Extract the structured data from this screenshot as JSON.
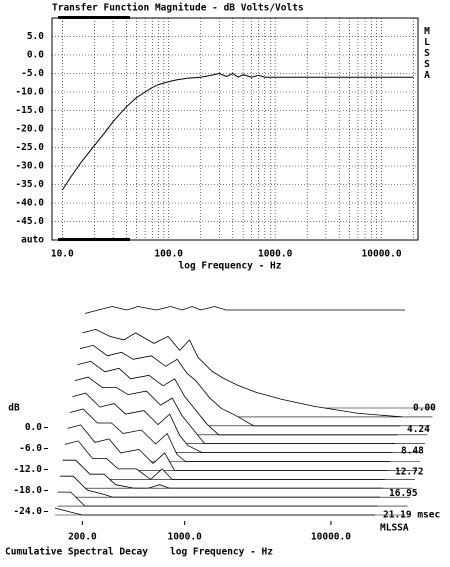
{
  "chart_data": [
    {
      "type": "line",
      "title": "Transfer Function Magnitude - dB Volts/Volts",
      "xlabel": "log Frequency - Hz",
      "side_label": "MLSSA",
      "log_x": true,
      "grid": true,
      "color": "#000000",
      "xlim": [
        8,
        22000
      ],
      "xticks": [
        {
          "value": 10,
          "label": "10.0"
        },
        {
          "value": 100,
          "label": "100.0"
        },
        {
          "value": 1000,
          "label": "1000.0"
        },
        {
          "value": 10000,
          "label": "10000.0"
        }
      ],
      "x_minor_ticks": [
        20,
        30,
        40,
        50,
        60,
        70,
        80,
        90,
        200,
        300,
        400,
        500,
        600,
        700,
        800,
        900,
        2000,
        3000,
        4000,
        5000,
        6000,
        7000,
        8000,
        9000,
        20000
      ],
      "ylim": [
        -50,
        10
      ],
      "yticks": [
        {
          "value": 5,
          "label": "5.0"
        },
        {
          "value": 0,
          "label": "0.0"
        },
        {
          "value": -5,
          "label": "-5.0"
        },
        {
          "value": -10,
          "label": "-10.0"
        },
        {
          "value": -15,
          "label": "-15.0"
        },
        {
          "value": -20,
          "label": "-20.0"
        },
        {
          "value": -25,
          "label": "-25.0"
        },
        {
          "value": -30,
          "label": "-30.0"
        },
        {
          "value": -35,
          "label": "-35.0"
        },
        {
          "value": -40,
          "label": "-40.0"
        },
        {
          "value": -45,
          "label": "-45.0"
        },
        {
          "value": -50,
          "label": "auto"
        }
      ],
      "x": [
        10,
        12,
        15,
        20,
        25,
        30,
        40,
        50,
        60,
        70,
        80,
        100,
        120,
        150,
        200,
        250,
        300,
        350,
        400,
        450,
        500,
        600,
        700,
        800,
        1000,
        2000,
        5000,
        10000,
        20000
      ],
      "values": [
        -36.5,
        -33,
        -29,
        -24.5,
        -21,
        -18,
        -14,
        -11.5,
        -10,
        -8.8,
        -8,
        -7.2,
        -6.7,
        -6.3,
        -6,
        -5.5,
        -5,
        -5.8,
        -5,
        -6,
        -5.3,
        -6,
        -5.5,
        -6,
        -6,
        -6,
        -6,
        -6,
        -6
      ]
    },
    {
      "type": "waterfall",
      "caption": "Cumulative Spectral Decay",
      "xlabel": "log Frequency - Hz",
      "ylabel": "dB",
      "brand": "MLSSA",
      "log_x": true,
      "xlim": [
        130,
        20000
      ],
      "xticks": [
        {
          "value": 200,
          "label": "200.0"
        },
        {
          "value": 1000,
          "label": "1000.0"
        },
        {
          "value": 10000,
          "label": "10000.0"
        }
      ],
      "ylim": [
        -25,
        6
      ],
      "yticks": [
        {
          "value": 0,
          "label": "0.0"
        },
        {
          "value": -6,
          "label": "-6.0"
        },
        {
          "value": -12,
          "label": "-12.0"
        },
        {
          "value": -18,
          "label": "-18.0"
        },
        {
          "value": -24,
          "label": "-24.0"
        }
      ],
      "zlim": [
        0,
        21.19
      ],
      "zticks": [
        {
          "value": 0,
          "label": "0.00"
        },
        {
          "value": 4.24,
          "label": "4.24"
        },
        {
          "value": 8.48,
          "label": "8.48"
        },
        {
          "value": 12.72,
          "label": "12.72"
        },
        {
          "value": 16.95,
          "label": "16.95"
        },
        {
          "value": 21.19,
          "label": "21.19 msec"
        }
      ],
      "x": [
        130,
        160,
        200,
        250,
        300,
        400,
        500,
        600,
        700,
        800,
        1000,
        1200,
        1500,
        2000,
        3000,
        5000,
        10000,
        20000
      ],
      "slices": [
        {
          "time": 0,
          "values": [
            2,
            3,
            4,
            3,
            4,
            3,
            4,
            3,
            4,
            3,
            4,
            3,
            3,
            3,
            3,
            3,
            3,
            3
          ]
        },
        {
          "time": 1.77,
          "values": [
            -1,
            0,
            -2,
            -3,
            -1,
            -4,
            -2,
            -6,
            -3,
            -8,
            -12,
            -14,
            -16,
            -18,
            -20,
            -22,
            -24,
            -25
          ]
        },
        {
          "time": 3.53,
          "values": [
            -3,
            -2,
            -5,
            -4,
            -6,
            -5,
            -8,
            -6,
            -10,
            -12,
            -17,
            -20,
            -22,
            -25,
            -25,
            -25,
            -25,
            -25
          ]
        },
        {
          "time": 5.3,
          "values": [
            -5,
            -4,
            -7,
            -6,
            -9,
            -8,
            -11,
            -9,
            -14,
            -17,
            -22,
            -25,
            -25,
            -25,
            -25,
            -25,
            -25,
            -25
          ]
        },
        {
          "time": 7.06,
          "values": [
            -7,
            -6,
            -9,
            -9,
            -11,
            -10,
            -14,
            -12,
            -17,
            -20,
            -25,
            -25,
            -25,
            -25,
            -25,
            -25,
            -25,
            -25
          ]
        },
        {
          "time": 8.83,
          "values": [
            -9,
            -8,
            -12,
            -11,
            -14,
            -13,
            -17,
            -14,
            -20,
            -23,
            -25,
            -25,
            -25,
            -25,
            -25,
            -25,
            -25,
            -25
          ]
        },
        {
          "time": 10.6,
          "values": [
            -11,
            -10,
            -14,
            -14,
            -17,
            -16,
            -20,
            -17,
            -23,
            -25,
            -25,
            -25,
            -25,
            -25,
            -25,
            -25,
            -25,
            -25
          ]
        },
        {
          "time": 12.36,
          "values": [
            -13,
            -12,
            -17,
            -16,
            -20,
            -19,
            -23,
            -20,
            -25,
            -25,
            -25,
            -25,
            -25,
            -25,
            -25,
            -25,
            -25,
            -25
          ]
        },
        {
          "time": 14.13,
          "values": [
            -15,
            -14,
            -19,
            -19,
            -22,
            -22,
            -25,
            -22,
            -25,
            -25,
            -25,
            -25,
            -25,
            -25,
            -25,
            -25,
            -25,
            -25
          ]
        },
        {
          "time": 15.89,
          "values": [
            -17,
            -17,
            -21,
            -21,
            -24,
            -25,
            -25,
            -24,
            -25,
            -25,
            -25,
            -25,
            -25,
            -25,
            -25,
            -25,
            -25,
            -25
          ]
        },
        {
          "time": 17.66,
          "values": [
            -19,
            -19,
            -23,
            -24,
            -25,
            -25,
            -25,
            -25,
            -25,
            -25,
            -25,
            -25,
            -25,
            -25,
            -25,
            -25,
            -25,
            -25
          ]
        },
        {
          "time": 19.42,
          "values": [
            -21,
            -21,
            -25,
            -25,
            -25,
            -25,
            -25,
            -25,
            -25,
            -25,
            -25,
            -25,
            -25,
            -25,
            -25,
            -25,
            -25,
            -25
          ]
        },
        {
          "time": 21.19,
          "values": [
            -23,
            -24,
            -25,
            -25,
            -25,
            -25,
            -25,
            -25,
            -25,
            -25,
            -25,
            -25,
            -25,
            -25,
            -25,
            -25,
            -25,
            -25
          ]
        }
      ]
    }
  ]
}
